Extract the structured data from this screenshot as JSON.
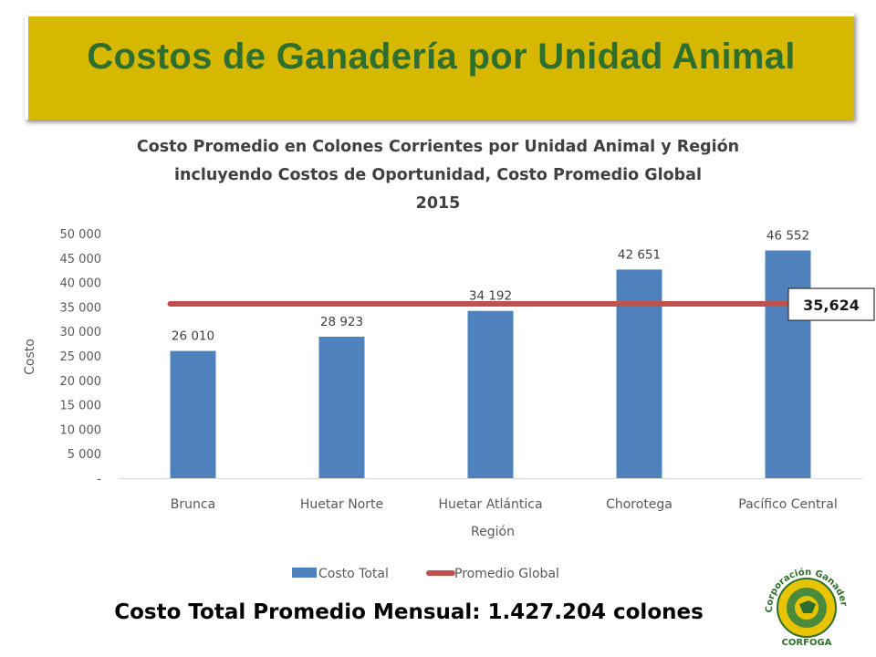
{
  "slide": {
    "title": "Costos de Ganadería por Unidad Animal",
    "footer_label": "Costo Total Promedio Mensual: 1.427.204 colones",
    "logo_text_top": "Corporación Ganadera",
    "logo_text_bottom": "CORFOGA"
  },
  "chart_data": {
    "type": "bar",
    "title_lines": [
      "Costo Promedio en Colones Corrientes por Unidad Animal y Región",
      "incluyendo Costos de Oportunidad, Costo Promedio Global",
      "2015"
    ],
    "xlabel": "Región",
    "ylabel": "Costo",
    "categories": [
      "Brunca",
      "Huetar Norte",
      "Huetar Atlántica",
      "Chorotega",
      "Pacífico Central"
    ],
    "series": [
      {
        "name": "Costo Total",
        "type": "bar",
        "values": [
          26010,
          28923,
          34192,
          42651,
          46552
        ],
        "value_labels": [
          "26 010",
          "28 923",
          "34 192",
          "42 651",
          "46 552"
        ],
        "color": "#4f81bd"
      },
      {
        "name": "Promedio Global",
        "type": "line",
        "value": 35624,
        "value_label": "35,624",
        "color": "#c0504d"
      }
    ],
    "ylim": [
      0,
      50000
    ],
    "y_ticks": [
      0,
      5000,
      10000,
      15000,
      20000,
      25000,
      30000,
      35000,
      40000,
      45000,
      50000
    ],
    "y_tick_labels": [
      "-",
      "5 000",
      "10 000",
      "15 000",
      "20 000",
      "25 000",
      "30 000",
      "35 000",
      "40 000",
      "45 000",
      "50 000"
    ],
    "grid": false,
    "legend": "bottom"
  },
  "colors": {
    "banner": "#d6b800",
    "title_green": "#2e6f2e",
    "bar": "#4f81bd",
    "line": "#c0504d",
    "axis_text": "#595959"
  }
}
